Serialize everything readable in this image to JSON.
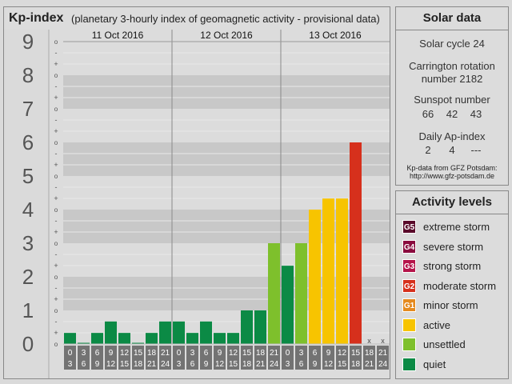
{
  "header": {
    "title": "Kp-index",
    "subtitle": "(planetary 3-hourly index of geomagnetic activity - provisional data)"
  },
  "chart_data": {
    "type": "bar",
    "days": [
      "11 Oct 2016",
      "12 Oct 2016",
      "13 Oct 2016"
    ],
    "interval_starts": [
      "0",
      "3",
      "6",
      "9",
      "12",
      "15",
      "18",
      "21",
      "0",
      "3",
      "6",
      "9",
      "12",
      "15",
      "18",
      "21",
      "0",
      "3",
      "6",
      "9",
      "12",
      "15",
      "18",
      "21"
    ],
    "interval_ends": [
      "3",
      "6",
      "9",
      "12",
      "15",
      "18",
      "21",
      "24",
      "3",
      "6",
      "9",
      "12",
      "15",
      "18",
      "21",
      "24",
      "3",
      "6",
      "9",
      "12",
      "15",
      "18",
      "21",
      "24"
    ],
    "values": [
      0.33,
      0,
      0.33,
      0.67,
      0.33,
      0,
      0.33,
      0.67,
      0.67,
      0.33,
      0.67,
      0.33,
      0.33,
      1,
      1,
      3,
      2.33,
      3,
      4,
      4.33,
      4.33,
      6,
      null,
      null
    ],
    "missing_marker": "x",
    "ylim": [
      0,
      9
    ],
    "major_ticks": [
      "0",
      "1",
      "2",
      "3",
      "4",
      "5",
      "6",
      "7",
      "8",
      "9"
    ],
    "minor_tick_labels": [
      "+",
      "o",
      "-"
    ],
    "thresholds": {
      "unsettled": 3,
      "active": 4,
      "G1": 5,
      "G2": 6,
      "G3": 7,
      "G4": 8,
      "G5": 9
    },
    "colors": {
      "quiet": "#0b8a45",
      "unsettled": "#7ec02c",
      "active": "#f7c400",
      "minor_storm": "#e58a1f",
      "moderate_storm": "#d6301c",
      "strong_storm": "#b5144a",
      "severe_storm": "#8a0b3e",
      "extreme_storm": "#5a0a2a"
    }
  },
  "solar": {
    "title": "Solar data",
    "cycle": "Solar cycle 24",
    "carrington_line1": "Carrington rotation",
    "carrington_line2": "number 2182",
    "sunspot_label": "Sunspot number",
    "sunspot_values": [
      "66",
      "42",
      "43"
    ],
    "ap_label": "Daily Ap-index",
    "ap_values": [
      "2",
      "4",
      "---"
    ],
    "credit_line1": "Kp-data from GFZ Potsdam:",
    "credit_line2": "http://www.gfz-potsdam.de"
  },
  "activity": {
    "title": "Activity levels",
    "items": [
      {
        "badge": "G5",
        "label": "extreme storm",
        "color": "#5a0a2a"
      },
      {
        "badge": "G4",
        "label": "severe storm",
        "color": "#8a0b3e"
      },
      {
        "badge": "G3",
        "label": "strong storm",
        "color": "#b5144a"
      },
      {
        "badge": "G2",
        "label": "moderate storm",
        "color": "#d6301c"
      },
      {
        "badge": "G1",
        "label": "minor storm",
        "color": "#e58a1f"
      },
      {
        "badge": "",
        "label": "active",
        "color": "#f7c400"
      },
      {
        "badge": "",
        "label": "unsettled",
        "color": "#7ec02c"
      },
      {
        "badge": "",
        "label": "quiet",
        "color": "#0b8a45"
      }
    ]
  }
}
